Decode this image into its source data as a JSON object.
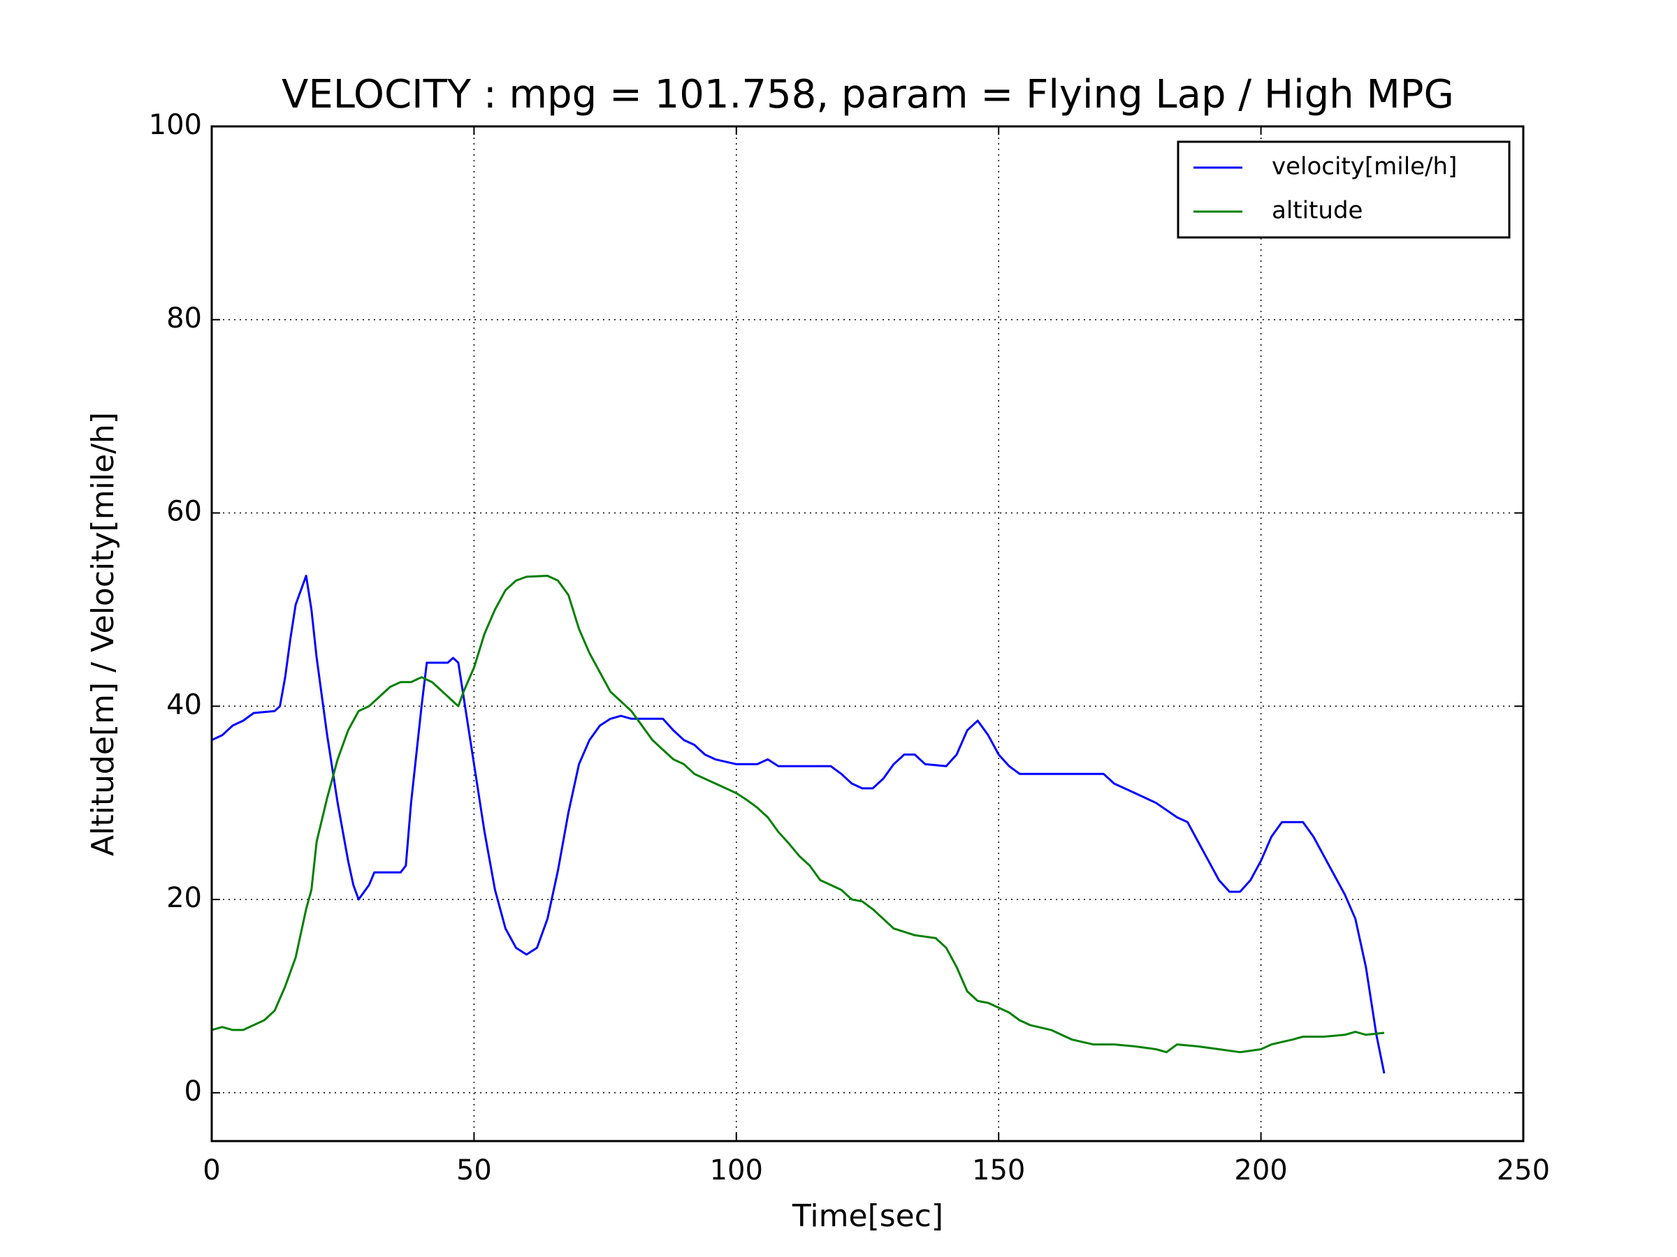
{
  "chart_data": {
    "type": "line",
    "title": "VELOCITY : mpg = 101.758, param = Flying Lap / High MPG",
    "x_label": "Time[sec]",
    "y_label": "Altitude[m] / Velocity[mile/h]",
    "xlim": [
      0,
      250
    ],
    "xticks": [
      0,
      50,
      100,
      150,
      200,
      250
    ],
    "ylim": [
      -5,
      100
    ],
    "yticks": [
      0,
      20,
      40,
      60,
      80,
      100
    ],
    "grid": true,
    "legend": "upper right",
    "series": [
      {
        "name": "velocity[mile/h]",
        "color": "#0000ff",
        "x": [
          0,
          2,
          4,
          6,
          8,
          12,
          13,
          14,
          15,
          16,
          17,
          18,
          19,
          20,
          22,
          24,
          26,
          27,
          28,
          30,
          31,
          36,
          37,
          38,
          40,
          41,
          45,
          46,
          47,
          48,
          50,
          52,
          54,
          56,
          58,
          60,
          62,
          64,
          66,
          68,
          70,
          72,
          74,
          76,
          78,
          80,
          86,
          88,
          90,
          92,
          94,
          96,
          100,
          104,
          106,
          108,
          118,
          120,
          122,
          124,
          126,
          128,
          130,
          132,
          134,
          136,
          140,
          142,
          144,
          146,
          148,
          150,
          152,
          154,
          170,
          172,
          176,
          180,
          184,
          186,
          188,
          190,
          192,
          194,
          196,
          198,
          200,
          202,
          204,
          208,
          210,
          212,
          214,
          216,
          218,
          220,
          222,
          223.5
        ],
        "values": [
          36.5,
          37,
          38,
          38.5,
          39.3,
          39.5,
          40,
          43,
          47,
          50.5,
          52,
          53.5,
          50,
          45,
          37,
          30,
          24,
          21.5,
          20,
          21.5,
          22.8,
          22.8,
          23.5,
          30,
          40,
          44.5,
          44.5,
          45,
          44.5,
          41,
          34,
          27,
          21,
          17,
          15,
          14.3,
          15,
          18,
          23,
          29,
          34,
          36.5,
          38,
          38.7,
          39,
          38.7,
          38.7,
          37.5,
          36.5,
          36,
          35,
          34.5,
          34,
          34,
          34.5,
          33.8,
          33.8,
          33,
          32,
          31.5,
          31.5,
          32.5,
          34,
          35,
          35,
          34,
          33.8,
          35,
          37.5,
          38.5,
          37,
          35,
          33.8,
          33,
          33,
          32,
          31,
          30,
          28.5,
          28,
          26,
          24,
          22,
          20.8,
          20.8,
          22,
          24,
          26.5,
          28,
          28,
          26.5,
          24.5,
          22.5,
          20.5,
          18,
          13,
          6,
          2
        ]
      },
      {
        "name": "altitude",
        "color": "#008000",
        "x": [
          0,
          2,
          4,
          6,
          8,
          10,
          12,
          14,
          16,
          18,
          19,
          20,
          22,
          24,
          26,
          28,
          30,
          32,
          34,
          36,
          38,
          40,
          42,
          44,
          46,
          47,
          48,
          50,
          52,
          54,
          56,
          58,
          60,
          64,
          66,
          68,
          70,
          72,
          74,
          76,
          78,
          80,
          82,
          84,
          86,
          88,
          90,
          92,
          94,
          96,
          98,
          100,
          102,
          104,
          106,
          108,
          110,
          112,
          114,
          116,
          118,
          120,
          122,
          124,
          126,
          128,
          130,
          134,
          138,
          140,
          142,
          144,
          146,
          148,
          150,
          152,
          154,
          156,
          160,
          164,
          168,
          172,
          176,
          180,
          182,
          184,
          188,
          192,
          196,
          200,
          202,
          206,
          208,
          212,
          216,
          218,
          220,
          223.5
        ],
        "values": [
          6.5,
          6.8,
          6.5,
          6.5,
          7,
          7.5,
          8.5,
          11,
          14,
          19,
          21,
          26,
          30.5,
          34.5,
          37.5,
          39.5,
          40,
          41,
          42,
          42.5,
          42.5,
          43,
          42.5,
          41.5,
          40.5,
          40,
          41.5,
          44,
          47.5,
          50,
          52,
          53,
          53.4,
          53.5,
          53,
          51.5,
          48,
          45.5,
          43.5,
          41.5,
          40.5,
          39.5,
          38,
          36.5,
          35.5,
          34.5,
          34,
          33,
          32.5,
          32,
          31.5,
          31,
          30.3,
          29.5,
          28.5,
          27,
          25.8,
          24.5,
          23.5,
          22,
          21.5,
          21,
          20,
          19.8,
          19,
          18,
          17,
          16.3,
          16,
          15,
          13,
          10.5,
          9.5,
          9.3,
          8.8,
          8.3,
          7.5,
          7,
          6.5,
          5.5,
          5,
          5,
          4.8,
          4.5,
          4.2,
          5,
          4.8,
          4.5,
          4.2,
          4.5,
          5,
          5.5,
          5.8,
          5.8,
          6,
          6.3,
          6,
          6.2
        ]
      }
    ]
  }
}
